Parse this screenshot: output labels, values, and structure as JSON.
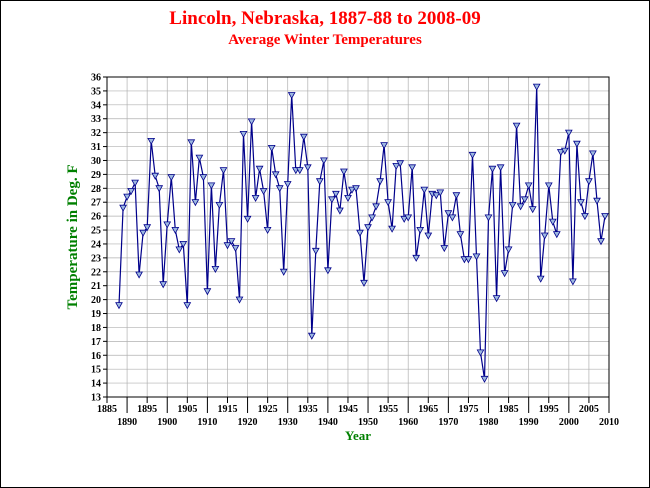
{
  "colors": {
    "title": "#ff0000",
    "axis_title": "#008000",
    "series": "#00008b",
    "marker_fill": "#9db8e0",
    "grid": "#b0b0b0"
  },
  "chart_data": {
    "type": "line",
    "title": "Lincoln, Nebraska, 1887-88 to 2008-09",
    "subtitle": "Average Winter Temperatures",
    "xlabel": "Year",
    "ylabel": "Temperature in Deg. F",
    "xlim": [
      1885,
      2010
    ],
    "ylim": [
      13,
      36
    ],
    "xticks": [
      1885,
      1890,
      1895,
      1900,
      1905,
      1910,
      1915,
      1920,
      1925,
      1930,
      1935,
      1940,
      1945,
      1950,
      1955,
      1960,
      1965,
      1970,
      1975,
      1980,
      1985,
      1990,
      1995,
      2000,
      2005,
      2010
    ],
    "yticks": [
      13,
      14,
      15,
      16,
      17,
      18,
      19,
      20,
      21,
      22,
      23,
      24,
      25,
      26,
      27,
      28,
      29,
      30,
      31,
      32,
      33,
      34,
      35,
      36
    ],
    "grid": true,
    "marker": "triangle-down",
    "series": [
      {
        "x": [
          1888,
          1889,
          1890,
          1891,
          1892,
          1893,
          1894,
          1895,
          1896,
          1897,
          1898,
          1899,
          1900,
          1901,
          1902,
          1903,
          1904,
          1905,
          1906,
          1907,
          1908,
          1909,
          1910,
          1911,
          1912,
          1913,
          1914,
          1915,
          1916,
          1917,
          1918,
          1919,
          1920,
          1921,
          1922,
          1923,
          1924,
          1925,
          1926,
          1927,
          1928,
          1929,
          1930,
          1931,
          1932,
          1933,
          1934,
          1935,
          1936,
          1937,
          1938,
          1939,
          1940,
          1941,
          1942,
          1943,
          1944,
          1945,
          1946,
          1947,
          1948,
          1949,
          1950,
          1951,
          1952,
          1953,
          1954,
          1955,
          1956,
          1957,
          1958,
          1959,
          1960,
          1961,
          1962,
          1963,
          1964,
          1965,
          1966,
          1967,
          1968,
          1969,
          1970,
          1971,
          1972,
          1973,
          1974,
          1975,
          1976,
          1977,
          1978,
          1979,
          1980,
          1981,
          1982,
          1983,
          1984,
          1985,
          1986,
          1987,
          1988,
          1989,
          1990,
          1991,
          1992,
          1993,
          1994,
          1995,
          1996,
          1997,
          1998,
          1999,
          2000,
          2001,
          2002,
          2003,
          2004,
          2005,
          2006,
          2007,
          2008,
          2009
        ],
        "values": [
          19.6,
          26.6,
          27.4,
          27.8,
          28.4,
          21.8,
          24.8,
          25.2,
          31.4,
          28.9,
          28.0,
          21.1,
          25.4,
          28.8,
          25.0,
          23.6,
          24.0,
          19.6,
          31.3,
          27.0,
          30.2,
          28.8,
          20.6,
          28.2,
          22.2,
          26.8,
          29.3,
          23.9,
          24.2,
          23.7,
          20.0,
          31.9,
          25.8,
          32.8,
          27.3,
          29.4,
          27.8,
          25.0,
          30.9,
          29.0,
          28.0,
          22.0,
          28.3,
          34.7,
          29.3,
          29.3,
          31.7,
          29.5,
          17.4,
          23.5,
          28.5,
          30.0,
          22.1,
          27.2,
          27.6,
          26.4,
          29.2,
          27.3,
          27.9,
          28.0,
          24.8,
          21.2,
          25.2,
          25.9,
          26.7,
          28.5,
          31.1,
          27.0,
          25.1,
          29.6,
          29.8,
          25.8,
          25.9,
          29.5,
          23.0,
          25.0,
          27.9,
          24.6,
          27.6,
          27.5,
          27.7,
          23.7,
          26.2,
          25.9,
          27.5,
          24.7,
          22.9,
          22.9,
          30.4,
          23.1,
          16.2,
          14.3,
          25.9,
          29.4,
          20.1,
          29.5,
          21.9,
          23.6,
          26.8,
          32.5,
          26.7,
          27.2,
          28.2,
          26.5,
          35.3,
          21.5,
          24.6,
          28.2,
          25.6,
          24.7,
          30.6,
          30.7,
          32.0,
          21.3,
          31.2,
          27.0,
          26.0,
          28.5,
          30.5,
          27.1,
          24.2,
          26.0
        ]
      }
    ]
  }
}
